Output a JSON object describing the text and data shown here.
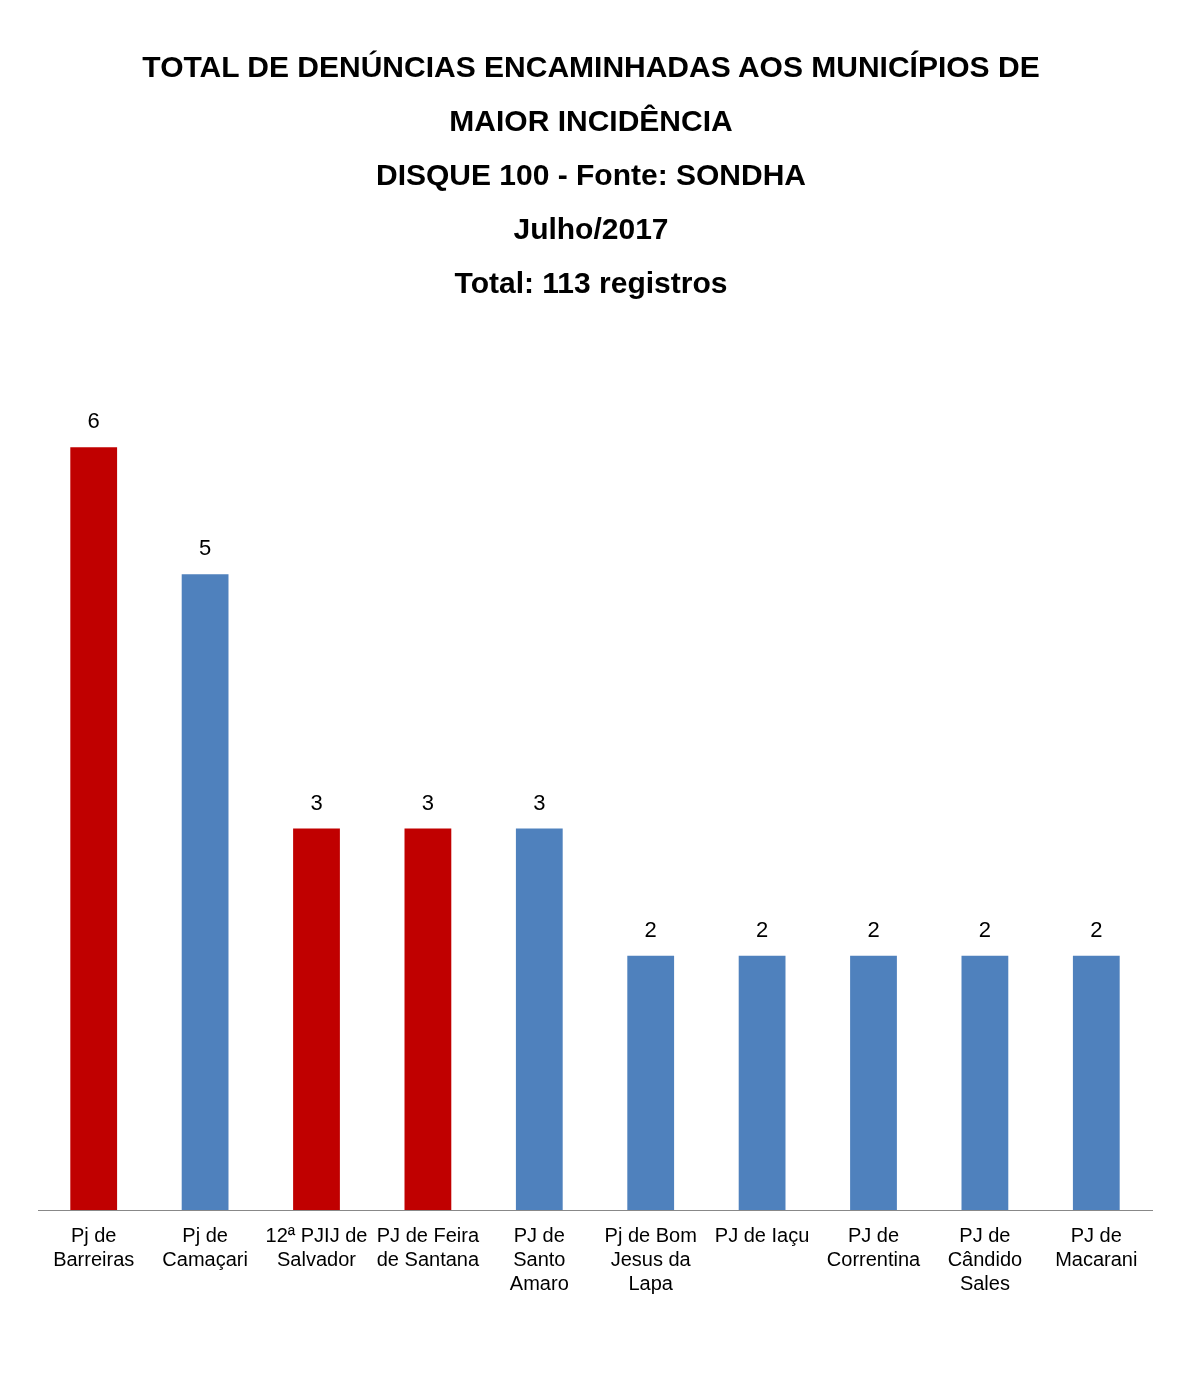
{
  "chart_data": {
    "type": "bar",
    "title": "TOTAL DE DENÚNCIAS ENCAMINHADAS AOS MUNICÍPIOS DE MAIOR INCIDÊNCIA",
    "subtitle": "DISQUE 100 - Fonte: SONDHA",
    "annotations": [
      "Julho/2017",
      "Total: 113 registros"
    ],
    "categories": [
      "Pj de Barreiras",
      "Pj de Camaçari",
      "12ª PJIJ de Salvador",
      "PJ de Feira de Santana",
      "PJ de Santo Amaro",
      "Pj de Bom Jesus da Lapa",
      "PJ de Iaçu",
      "PJ de Correntina",
      "PJ de Cândido Sales",
      "PJ de Macarani"
    ],
    "values": [
      6,
      5,
      3,
      3,
      3,
      2,
      2,
      2,
      2,
      2
    ],
    "colors": [
      "#c00000",
      "#4f81bd",
      "#c00000",
      "#c00000",
      "#4f81bd",
      "#4f81bd",
      "#4f81bd",
      "#4f81bd",
      "#4f81bd",
      "#4f81bd"
    ],
    "data_labels": true,
    "grid": false,
    "legend": false
  }
}
